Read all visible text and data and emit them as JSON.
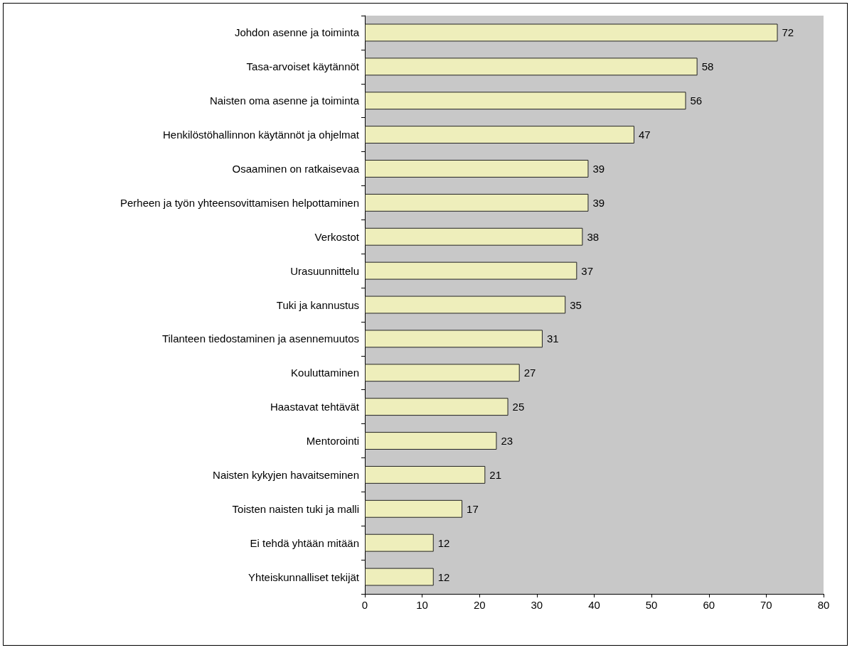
{
  "chart_data": {
    "type": "bar",
    "orientation": "horizontal",
    "categories": [
      "Johdon asenne ja toiminta",
      "Tasa-arvoiset käytännöt",
      "Naisten oma asenne ja toiminta",
      "Henkilöstöhallinnon käytännöt ja ohjelmat",
      "Osaaminen on ratkaisevaa",
      "Perheen ja työn yhteensovittamisen helpottaminen",
      "Verkostot",
      "Urasuunnittelu",
      "Tuki ja kannustus",
      "Tilanteen tiedostaminen ja asennemuutos",
      "Kouluttaminen",
      "Haastavat tehtävät",
      "Mentorointi",
      "Naisten kykyjen havaitseminen",
      "Toisten naisten tuki ja malli",
      "Ei tehdä yhtään mitään",
      "Yhteiskunnalliset tekijät"
    ],
    "values": [
      72,
      58,
      56,
      47,
      39,
      39,
      38,
      37,
      35,
      31,
      27,
      25,
      23,
      21,
      17,
      12,
      12
    ],
    "color": "#eeeebb",
    "xlim": [
      0,
      80
    ],
    "xticks": [
      0,
      10,
      20,
      30,
      40,
      50,
      60,
      70,
      80
    ],
    "grid": false,
    "data_labels": true
  }
}
